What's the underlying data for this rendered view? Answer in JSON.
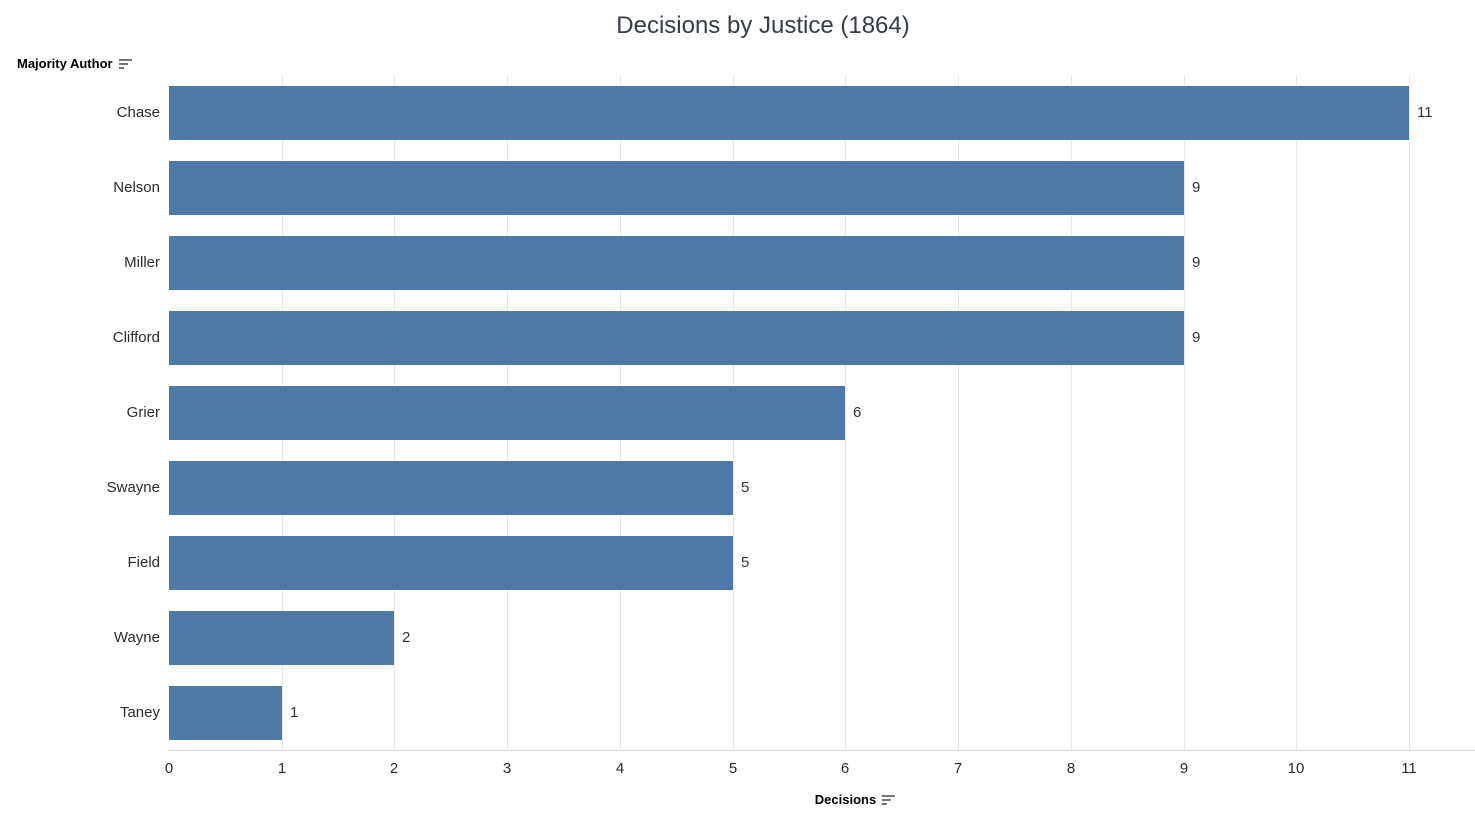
{
  "title": "Decisions by Justice (1864)",
  "row_axis": {
    "label": "Majority Author",
    "sort_icon": "sort-descending-icon"
  },
  "col_axis": {
    "label": "Decisions",
    "sort_icon": "sort-descending-icon",
    "tick_labels": [
      "0",
      "1",
      "2",
      "3",
      "4",
      "5",
      "6",
      "7",
      "8",
      "9",
      "10",
      "11"
    ]
  },
  "chart_data": {
    "type": "bar",
    "orientation": "horizontal",
    "title": "Decisions by Justice (1864)",
    "xlabel": "Decisions",
    "ylabel": "Majority Author",
    "categories": [
      "Chase",
      "Nelson",
      "Miller",
      "Clifford",
      "Grier",
      "Swayne",
      "Field",
      "Wayne",
      "Taney"
    ],
    "values": [
      11,
      9,
      9,
      9,
      6,
      5,
      5,
      2,
      1
    ],
    "x_ticks": [
      0,
      1,
      2,
      3,
      4,
      5,
      6,
      7,
      8,
      9,
      10,
      11
    ],
    "xlim": [
      0,
      11.6
    ],
    "grid": true,
    "sort_order": "descending",
    "value_labels_shown": true,
    "legend": "none"
  },
  "colors": {
    "bar": "#4e79a7",
    "gridline": "#e8e8e8",
    "axis_line": "#d8d8d8",
    "title_text": "#363d47",
    "label_text": "#2b2b2b",
    "sort_icon": "#757575"
  }
}
